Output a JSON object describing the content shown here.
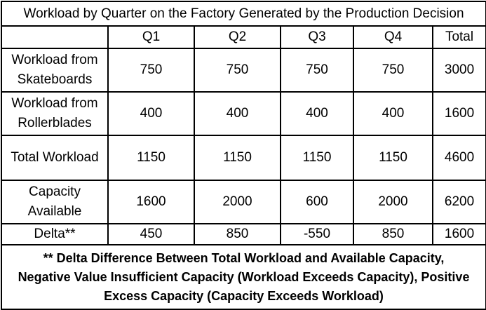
{
  "title": "Workload by Quarter on the Factory Generated by the Production Decision",
  "columns": [
    "",
    "Q1",
    "Q2",
    "Q3",
    "Q4",
    "Total"
  ],
  "rows": [
    {
      "label_lines": [
        "Workload from",
        "Skateboards"
      ],
      "values": [
        "750",
        "750",
        "750",
        "750",
        "3000"
      ]
    },
    {
      "label_lines": [
        "Workload from",
        "Rollerblades"
      ],
      "values": [
        "400",
        "400",
        "400",
        "400",
        "1600"
      ]
    },
    {
      "label_lines": [
        "Total Workload"
      ],
      "values": [
        "1150",
        "1150",
        "1150",
        "1150",
        "4600"
      ]
    },
    {
      "label_lines": [
        "Capacity",
        "Available"
      ],
      "values": [
        "1600",
        "2000",
        "600",
        "2000",
        "6200"
      ]
    },
    {
      "label_lines": [
        "Delta**"
      ],
      "values": [
        "450",
        "850",
        "-550",
        "850",
        "1600"
      ]
    }
  ],
  "note_lines": [
    "** Delta Difference Between Total Workload and Available Capacity,",
    "Negative Value Insufficient Capacity (Workload Exceeds Capacity), Positive",
    "Excess Capacity (Capacity Exceeds Workload)"
  ]
}
